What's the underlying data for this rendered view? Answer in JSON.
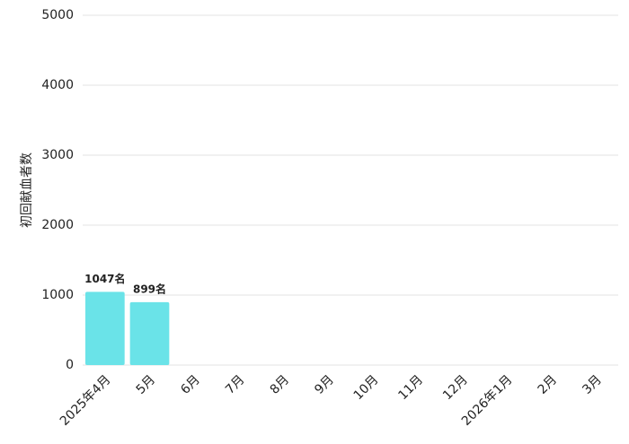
{
  "chart_data": {
    "type": "bar",
    "y_label": "初回献血者数",
    "categories": [
      "2025年4月",
      "5月",
      "6月",
      "7月",
      "8月",
      "9月",
      "10月",
      "11月",
      "12月",
      "2026年1月",
      "2月",
      "3月"
    ],
    "values": [
      1047,
      899,
      null,
      null,
      null,
      null,
      null,
      null,
      null,
      null,
      null,
      null
    ],
    "value_labels": [
      "1047名",
      "899名",
      null,
      null,
      null,
      null,
      null,
      null,
      null,
      null,
      null,
      null
    ],
    "color": "#6ae3e8",
    "ylim": [
      0,
      5000
    ],
    "yticks": [
      0,
      1000,
      2000,
      3000,
      4000,
      5000
    ],
    "grid": true
  }
}
